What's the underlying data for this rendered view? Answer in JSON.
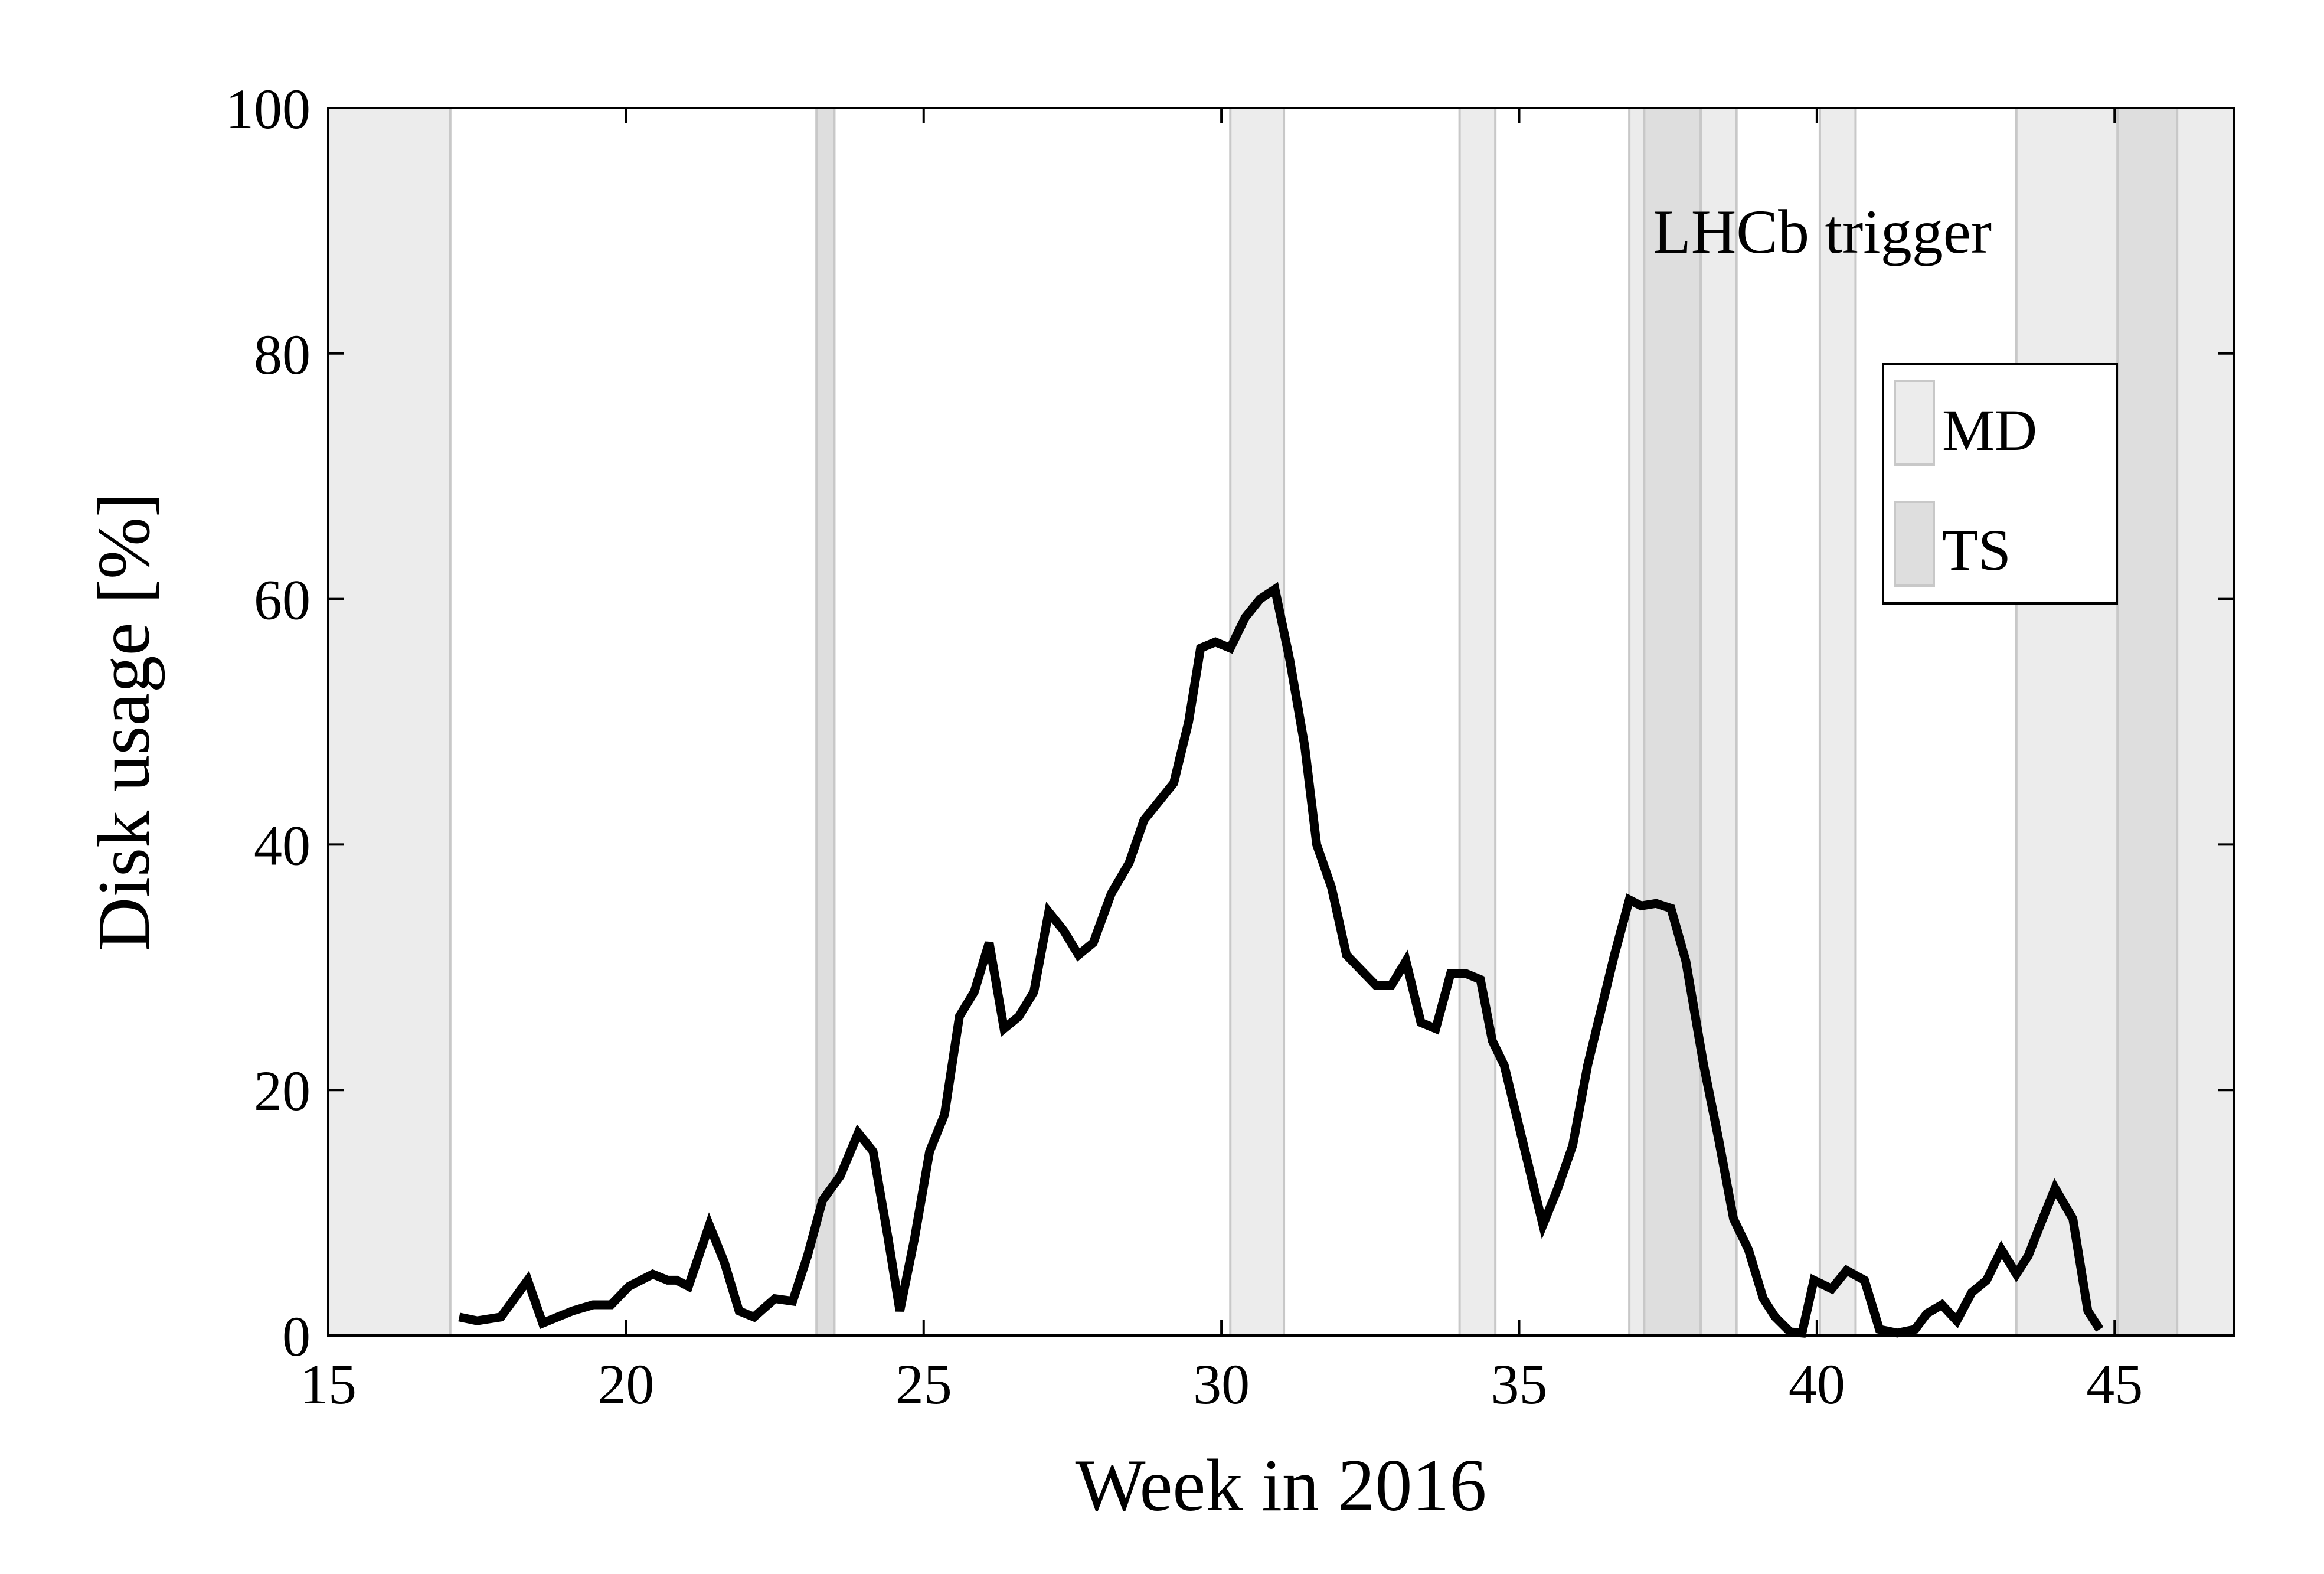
{
  "chart_data": {
    "type": "line",
    "title": "",
    "annotation": "LHCb trigger",
    "xlabel": "Week in 2016",
    "ylabel": "Disk usage [%]",
    "xlim": [
      15,
      47
    ],
    "ylim": [
      0,
      100
    ],
    "xticks": [
      15,
      20,
      25,
      30,
      35,
      40,
      45
    ],
    "yticks": [
      0,
      20,
      40,
      60,
      80,
      100
    ],
    "grid": false,
    "legend": {
      "placement": "top-right",
      "entries": [
        {
          "label": "MD",
          "color": "#ececec"
        },
        {
          "label": "TS",
          "color": "#dedede"
        }
      ]
    },
    "colors": {
      "line": "#000000",
      "md_band": "#ececec",
      "ts_band": "#dedede",
      "band_edge": "#c8c8c8"
    },
    "shaded_regions": [
      {
        "kind": "MD",
        "x": [
          15.0,
          17.05
        ]
      },
      {
        "kind": "TS",
        "x": [
          23.2,
          23.5
        ]
      },
      {
        "kind": "MD",
        "x": [
          30.15,
          31.05
        ]
      },
      {
        "kind": "MD",
        "x": [
          34.0,
          34.6
        ]
      },
      {
        "kind": "MD",
        "x": [
          36.85,
          37.1
        ]
      },
      {
        "kind": "TS",
        "x": [
          37.1,
          38.05
        ]
      },
      {
        "kind": "MD",
        "x": [
          38.05,
          38.65
        ]
      },
      {
        "kind": "MD",
        "x": [
          40.05,
          40.65
        ]
      },
      {
        "kind": "MD",
        "x": [
          43.35,
          45.05
        ]
      },
      {
        "kind": "TS",
        "x": [
          45.05,
          46.05
        ]
      },
      {
        "kind": "MD",
        "x": [
          46.05,
          47.0
        ]
      }
    ],
    "series": [
      {
        "x": [
          17.2,
          17.5,
          17.9,
          18.35,
          18.6,
          19.1,
          19.45,
          19.75,
          20.05,
          20.45,
          20.7,
          20.85,
          21.05,
          21.4,
          21.65,
          21.9,
          22.15,
          22.5,
          22.8,
          23.05,
          23.3,
          23.6,
          23.9,
          24.15,
          24.4,
          24.6,
          24.85,
          25.1,
          25.35,
          25.6,
          25.85,
          26.1,
          26.35,
          26.6,
          26.85,
          27.1,
          27.35,
          27.6,
          27.85,
          28.15,
          28.45,
          28.7,
          28.95,
          29.2,
          29.45,
          29.65,
          29.9,
          30.15,
          30.4,
          30.65,
          30.9,
          31.15,
          31.4,
          31.6,
          31.85,
          32.1,
          32.4,
          32.6,
          32.85,
          33.1,
          33.35,
          33.6,
          33.85,
          34.1,
          34.35,
          34.55,
          34.75,
          35.1,
          35.4,
          35.65,
          35.9,
          36.15,
          36.4,
          36.6,
          36.85,
          37.05,
          37.3,
          37.55,
          37.8,
          38.1,
          38.35,
          38.6,
          38.85,
          39.1,
          39.3,
          39.55,
          39.75,
          39.95,
          40.25,
          40.5,
          40.8,
          41.05,
          41.35,
          41.65,
          41.85,
          42.1,
          42.35,
          42.6,
          42.85,
          43.1,
          43.35,
          43.55,
          43.75,
          44.0,
          44.3,
          44.55,
          44.75
        ],
        "y": [
          1.5,
          1.2,
          1.5,
          4.5,
          1.0,
          2.0,
          2.5,
          2.5,
          4.0,
          5.0,
          4.5,
          4.5,
          4.0,
          9.0,
          6.0,
          2.0,
          1.5,
          3.0,
          2.8,
          6.5,
          11.0,
          13.0,
          16.5,
          15.0,
          8.0,
          2.0,
          8.0,
          15.0,
          18.0,
          26.0,
          28.0,
          32.0,
          25.0,
          26.0,
          28.0,
          34.5,
          33.0,
          31.0,
          32.0,
          36.0,
          38.5,
          42.0,
          43.5,
          45.0,
          50.0,
          56.0,
          56.5,
          56.0,
          58.5,
          60.0,
          60.8,
          55.0,
          48.0,
          40.0,
          36.5,
          31.0,
          29.5,
          28.5,
          28.5,
          30.5,
          25.5,
          25.0,
          29.5,
          29.5,
          29.0,
          24.0,
          22.0,
          15.0,
          9.0,
          12.0,
          15.5,
          22.0,
          27.0,
          31.0,
          35.5,
          35.0,
          35.2,
          34.8,
          30.5,
          22.0,
          16.0,
          9.5,
          7.0,
          3.0,
          1.5,
          0.3,
          0.2,
          4.5,
          3.8,
          5.3,
          4.5,
          0.5,
          0.2,
          0.5,
          1.8,
          2.5,
          1.2,
          3.5,
          4.5,
          7.0,
          5.0,
          6.5,
          9.0,
          12.0,
          9.5,
          2.0,
          0.5
        ]
      }
    ]
  }
}
